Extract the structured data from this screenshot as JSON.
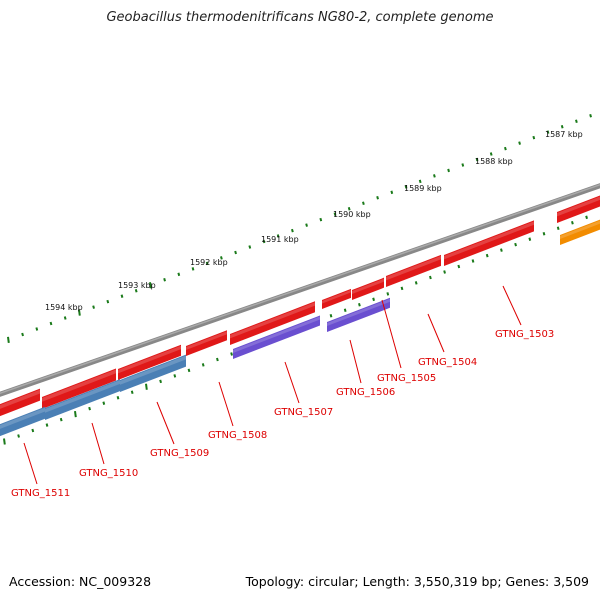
{
  "title": "Geobacillus thermodenitrificans NG80-2, complete genome",
  "footer": {
    "accession": "Accession: NC_009328",
    "summary": "Topology: circular; Length: 3,550,319 bp; Genes: 3,509"
  },
  "ticks": [
    "1587 kbp",
    "1588 kbp",
    "1589 kbp",
    "1590 kbp",
    "1591 kbp",
    "1592 kbp",
    "1593 kbp",
    "1594 kbp"
  ],
  "genes": [
    {
      "label": "GTNG_1503",
      "color": "#e01818"
    },
    {
      "label": "GTNG_1504",
      "color": "#e01818"
    },
    {
      "label": "GTNG_1505",
      "color": "#6a4fd0"
    },
    {
      "label": "GTNG_1506",
      "color": "#e01818"
    },
    {
      "label": "GTNG_1507",
      "color": "#6a4fd0"
    },
    {
      "label": "GTNG_1508",
      "color": "#e01818"
    },
    {
      "label": "GTNG_1509",
      "color": "#4a7fb5"
    },
    {
      "label": "GTNG_1510",
      "color": "#e01818"
    },
    {
      "label": "GTNG_1511",
      "color": "#e01818"
    }
  ],
  "colors": {
    "backbone": "#777777",
    "tick": "#1a7a1a",
    "orange_feature": "#f28c00"
  }
}
